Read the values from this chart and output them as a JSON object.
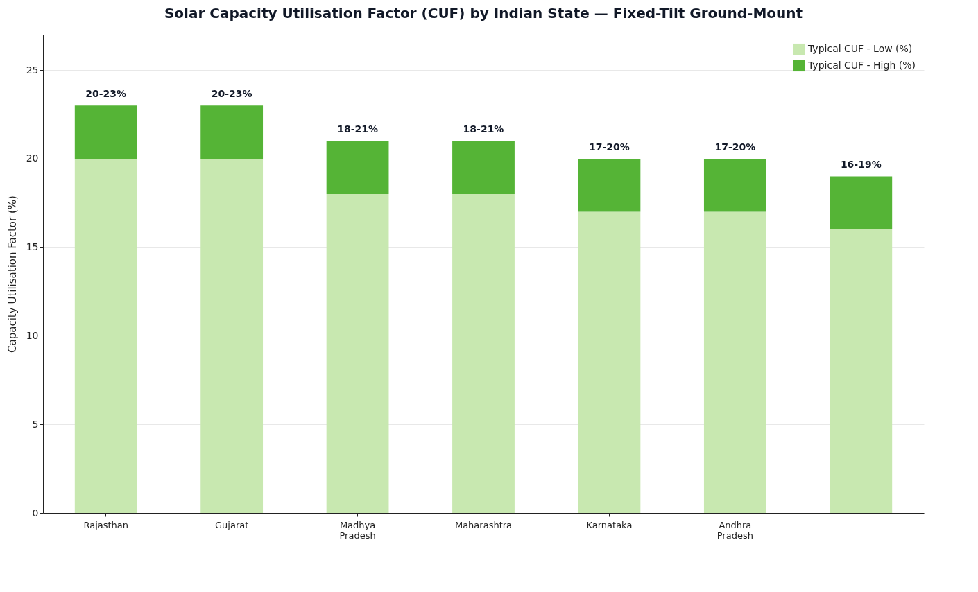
{
  "chart_data": {
    "type": "bar",
    "title": "Solar Capacity Utilisation Factor (CUF) by Indian State — Fixed-Tilt Ground-Mount",
    "ylabel": "Capacity Utilisation Factor (%)",
    "categories": [
      "Rajasthan",
      "Gujarat",
      "Madhya Pradesh",
      "Maharashtra",
      "Karnataka",
      "Andhra Pradesh",
      null
    ],
    "stacked": true,
    "series": [
      {
        "name": "Typical CUF - Low (%)",
        "color": "#c8e8b0",
        "values": [
          20,
          20,
          18,
          18,
          17,
          17,
          16
        ]
      },
      {
        "name": "Typical CUF - High (%)",
        "color": "#55b436",
        "values": [
          3,
          3,
          3,
          3,
          3,
          3,
          3
        ]
      }
    ],
    "totals": [
      "20-23%",
      "20-23%",
      "18-21%",
      "18-21%",
      "17-20%",
      "17-20%",
      "16-19%"
    ],
    "ylim": [
      0,
      27
    ],
    "yticks": [
      0,
      5,
      10,
      15,
      20,
      25
    ],
    "grid": "y",
    "legend": "top right"
  }
}
